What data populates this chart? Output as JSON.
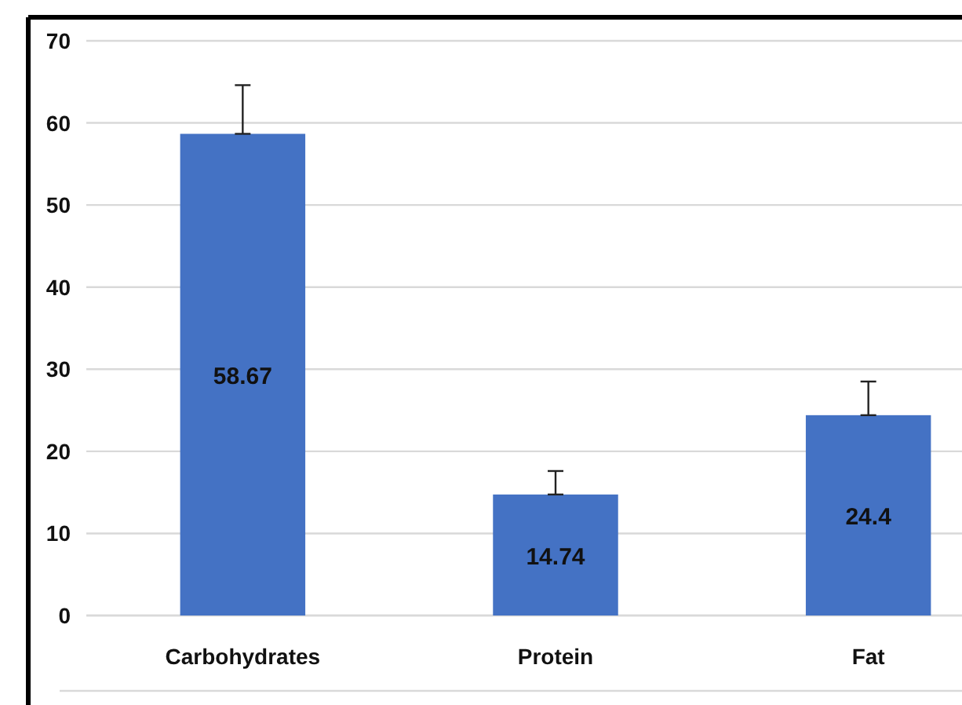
{
  "chart_data": {
    "type": "bar",
    "categories": [
      "Carbohydrates",
      "Protein",
      "Fat"
    ],
    "values": [
      58.67,
      14.74,
      24.4
    ],
    "errors": [
      [
        58.67,
        64.6
      ],
      [
        14.74,
        17.6
      ],
      [
        24.4,
        28.5
      ]
    ],
    "color": "#4472c4",
    "ylim": [
      0,
      70
    ],
    "yticks": [
      0,
      10,
      20,
      30,
      40,
      50,
      60,
      70
    ],
    "grid": "y",
    "data_labels": true
  }
}
